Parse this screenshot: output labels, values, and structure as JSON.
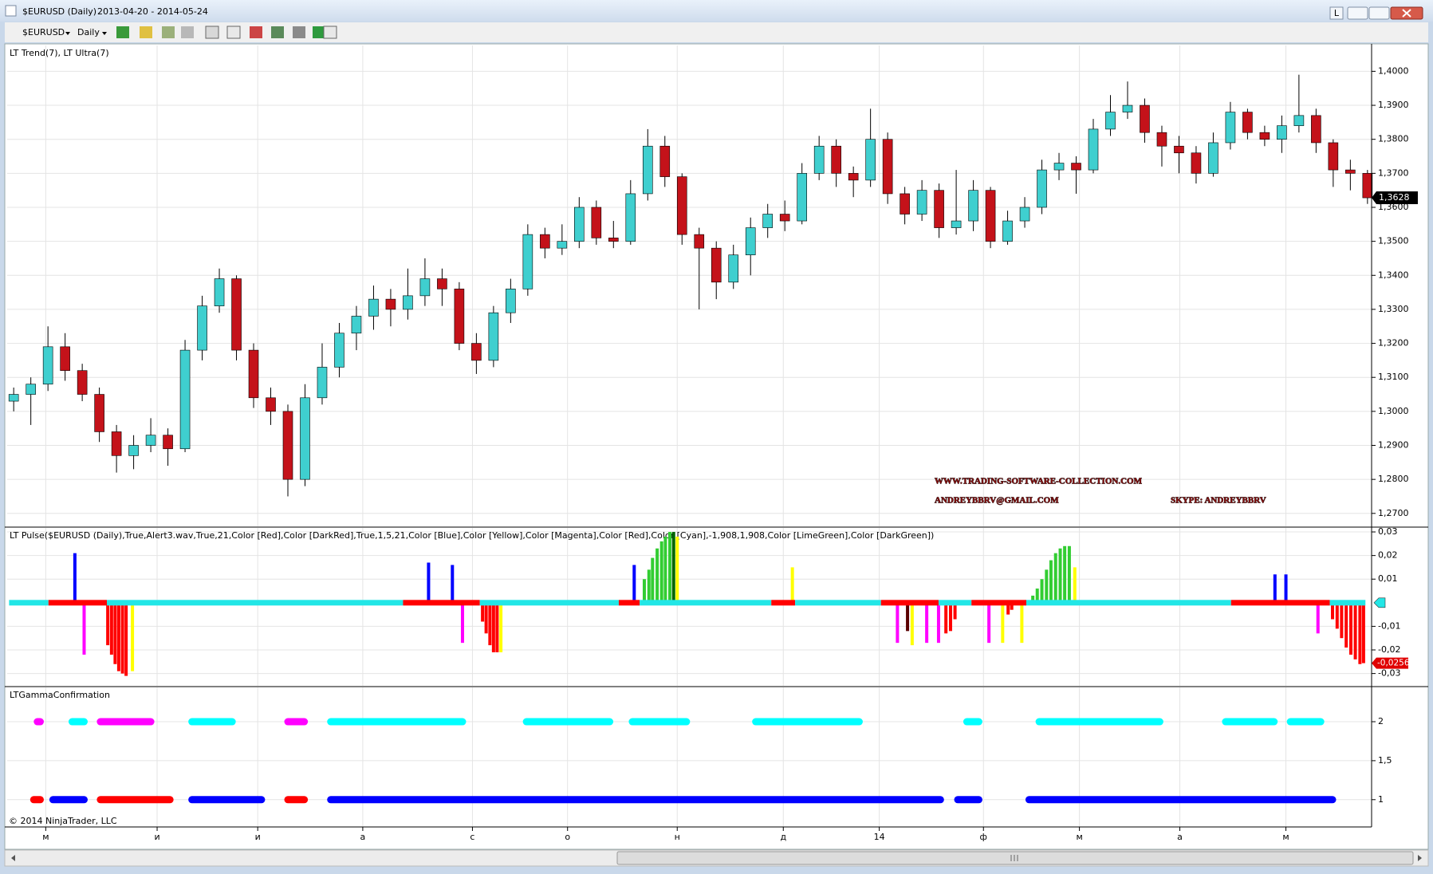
{
  "window": {
    "title": "$EURUSD (Daily)",
    "range": "2013-04-20 - 2014-05-24",
    "pin": "L"
  },
  "toolbar": {
    "symbol": "$EURUSD",
    "interval": "Daily"
  },
  "watermark": {
    "site": "WWW.TRADING-SOFTWARE-COLLECTION.COM",
    "email": "ANDREYBBRV@GMAIL.COM",
    "skype": "SKYPE: ANDREYBBRV"
  },
  "copyright": "© 2014 NinjaTrader, LLC",
  "chart_data": [
    {
      "type": "candlestick",
      "title": "LT Trend(7), LT Ultra(7)",
      "up_color": "#3fcfcf",
      "down_color": "#c4121a",
      "grid": true,
      "xlim": [
        -0.38,
        79.24
      ],
      "xticks": [
        {
          "value": 1.87,
          "label": "м"
        },
        {
          "value": 8.37,
          "label": "и"
        },
        {
          "value": 14.24,
          "label": "и"
        },
        {
          "value": 20.37,
          "label": "а"
        },
        {
          "value": 26.77,
          "label": "с"
        },
        {
          "value": 32.32,
          "label": "о"
        },
        {
          "value": 38.72,
          "label": "н"
        },
        {
          "value": 44.91,
          "label": "д"
        },
        {
          "value": 50.51,
          "label": "14"
        },
        {
          "value": 56.59,
          "label": "ф"
        },
        {
          "value": 62.19,
          "label": "м"
        },
        {
          "value": 68.05,
          "label": "а"
        },
        {
          "value": 74.24,
          "label": "м"
        }
      ],
      "ylim": [
        1.2662,
        1.4076
      ],
      "yticks": [
        {
          "value": 1.4,
          "label": "1,4000"
        },
        {
          "value": 1.39,
          "label": "1,3900"
        },
        {
          "value": 1.38,
          "label": "1,3800"
        },
        {
          "value": 1.37,
          "label": "1,3700"
        },
        {
          "value": 1.36,
          "label": "1,3600"
        },
        {
          "value": 1.35,
          "label": "1,3500"
        },
        {
          "value": 1.34,
          "label": "1,3400"
        },
        {
          "value": 1.33,
          "label": "1,3300"
        },
        {
          "value": 1.32,
          "label": "1,3200"
        },
        {
          "value": 1.31,
          "label": "1,3100"
        },
        {
          "value": 1.3,
          "label": "1,3000"
        },
        {
          "value": 1.29,
          "label": "1,2900"
        },
        {
          "value": 1.28,
          "label": "1,2800"
        },
        {
          "value": 1.27,
          "label": "1,2700"
        }
      ],
      "last_price": {
        "value": 1.3628,
        "label": "1,3628"
      },
      "ohlc": [
        [
          1.303,
          1.307,
          1.3,
          1.305
        ],
        [
          1.305,
          1.31,
          1.296,
          1.308
        ],
        [
          1.308,
          1.325,
          1.306,
          1.319
        ],
        [
          1.319,
          1.323,
          1.309,
          1.312
        ],
        [
          1.312,
          1.314,
          1.303,
          1.305
        ],
        [
          1.305,
          1.307,
          1.291,
          1.294
        ],
        [
          1.294,
          1.296,
          1.282,
          1.287
        ],
        [
          1.287,
          1.293,
          1.283,
          1.29
        ],
        [
          1.29,
          1.298,
          1.288,
          1.293
        ],
        [
          1.293,
          1.295,
          1.284,
          1.289
        ],
        [
          1.289,
          1.321,
          1.288,
          1.318
        ],
        [
          1.318,
          1.334,
          1.315,
          1.331
        ],
        [
          1.331,
          1.342,
          1.329,
          1.339
        ],
        [
          1.339,
          1.34,
          1.315,
          1.318
        ],
        [
          1.318,
          1.32,
          1.301,
          1.304
        ],
        [
          1.304,
          1.307,
          1.296,
          1.3
        ],
        [
          1.3,
          1.302,
          1.275,
          1.28
        ],
        [
          1.28,
          1.308,
          1.278,
          1.304
        ],
        [
          1.304,
          1.32,
          1.302,
          1.313
        ],
        [
          1.313,
          1.326,
          1.31,
          1.323
        ],
        [
          1.323,
          1.331,
          1.318,
          1.328
        ],
        [
          1.328,
          1.337,
          1.324,
          1.333
        ],
        [
          1.333,
          1.336,
          1.325,
          1.33
        ],
        [
          1.33,
          1.342,
          1.327,
          1.334
        ],
        [
          1.334,
          1.345,
          1.331,
          1.339
        ],
        [
          1.339,
          1.342,
          1.331,
          1.336
        ],
        [
          1.336,
          1.338,
          1.318,
          1.32
        ],
        [
          1.32,
          1.323,
          1.311,
          1.315
        ],
        [
          1.315,
          1.331,
          1.313,
          1.329
        ],
        [
          1.329,
          1.339,
          1.326,
          1.336
        ],
        [
          1.336,
          1.355,
          1.334,
          1.352
        ],
        [
          1.352,
          1.354,
          1.345,
          1.348
        ],
        [
          1.348,
          1.355,
          1.346,
          1.35
        ],
        [
          1.35,
          1.363,
          1.348,
          1.36
        ],
        [
          1.36,
          1.362,
          1.349,
          1.351
        ],
        [
          1.351,
          1.356,
          1.348,
          1.35
        ],
        [
          1.35,
          1.368,
          1.349,
          1.364
        ],
        [
          1.364,
          1.383,
          1.362,
          1.378
        ],
        [
          1.378,
          1.381,
          1.366,
          1.369
        ],
        [
          1.369,
          1.37,
          1.349,
          1.352
        ],
        [
          1.352,
          1.354,
          1.33,
          1.348
        ],
        [
          1.348,
          1.35,
          1.333,
          1.338
        ],
        [
          1.338,
          1.349,
          1.336,
          1.346
        ],
        [
          1.346,
          1.357,
          1.34,
          1.354
        ],
        [
          1.354,
          1.361,
          1.351,
          1.358
        ],
        [
          1.358,
          1.362,
          1.353,
          1.356
        ],
        [
          1.356,
          1.373,
          1.355,
          1.37
        ],
        [
          1.37,
          1.381,
          1.368,
          1.378
        ],
        [
          1.378,
          1.38,
          1.366,
          1.37
        ],
        [
          1.37,
          1.372,
          1.363,
          1.368
        ],
        [
          1.368,
          1.389,
          1.366,
          1.38
        ],
        [
          1.38,
          1.382,
          1.361,
          1.364
        ],
        [
          1.364,
          1.366,
          1.355,
          1.358
        ],
        [
          1.358,
          1.368,
          1.356,
          1.365
        ],
        [
          1.365,
          1.367,
          1.351,
          1.354
        ],
        [
          1.354,
          1.371,
          1.352,
          1.356
        ],
        [
          1.356,
          1.368,
          1.353,
          1.365
        ],
        [
          1.365,
          1.366,
          1.348,
          1.35
        ],
        [
          1.35,
          1.359,
          1.349,
          1.356
        ],
        [
          1.356,
          1.363,
          1.354,
          1.36
        ],
        [
          1.36,
          1.374,
          1.358,
          1.371
        ],
        [
          1.371,
          1.376,
          1.368,
          1.373
        ],
        [
          1.373,
          1.375,
          1.364,
          1.371
        ],
        [
          1.371,
          1.386,
          1.37,
          1.383
        ],
        [
          1.383,
          1.393,
          1.381,
          1.388
        ],
        [
          1.388,
          1.397,
          1.386,
          1.39
        ],
        [
          1.39,
          1.392,
          1.379,
          1.382
        ],
        [
          1.382,
          1.384,
          1.372,
          1.378
        ],
        [
          1.378,
          1.381,
          1.37,
          1.376
        ],
        [
          1.376,
          1.378,
          1.367,
          1.37
        ],
        [
          1.37,
          1.382,
          1.369,
          1.379
        ],
        [
          1.379,
          1.391,
          1.377,
          1.388
        ],
        [
          1.388,
          1.389,
          1.38,
          1.382
        ],
        [
          1.382,
          1.384,
          1.378,
          1.38
        ],
        [
          1.38,
          1.387,
          1.376,
          1.384
        ],
        [
          1.384,
          1.399,
          1.382,
          1.387
        ],
        [
          1.387,
          1.389,
          1.376,
          1.379
        ],
        [
          1.379,
          1.38,
          1.366,
          1.371
        ],
        [
          1.371,
          1.374,
          1.365,
          1.37
        ],
        [
          1.37,
          1.371,
          1.361,
          1.3628
        ]
      ]
    },
    {
      "type": "bar",
      "title": "LT Pulse($EURUSD (Daily),True,Alert3.wav,True,21,Color [Red],Color [DarkRed],True,1,5,21,Color [Blue],Color [Yellow],Color [Magenta],Color [Red],Color [Cyan],-1,908,1,908,Color [LimeGreen],Color [DarkGreen])",
      "ylim": [
        -0.0352,
        0.0317
      ],
      "yticks": [
        {
          "value": 0.03,
          "label": "0,03"
        },
        {
          "value": 0.02,
          "label": "0,02"
        },
        {
          "value": 0.01,
          "label": "0,01"
        },
        {
          "value": -0.01,
          "label": "-0,01"
        },
        {
          "value": -0.02,
          "label": "-0,02"
        },
        {
          "value": -0.03,
          "label": "-0,03"
        }
      ],
      "last_value": {
        "value": -0.0256,
        "label": "-0,0256"
      },
      "baseline": [
        {
          "from": -0.27,
          "to": 2.03,
          "color": "#22e6e6"
        },
        {
          "from": 2.03,
          "to": 5.44,
          "color": "#ff0000"
        },
        {
          "from": 5.44,
          "to": 22.72,
          "color": "#22e6e6"
        },
        {
          "from": 22.72,
          "to": 27.2,
          "color": "#ff0000"
        },
        {
          "from": 27.2,
          "to": 35.31,
          "color": "#22e6e6"
        },
        {
          "from": 35.31,
          "to": 36.53,
          "color": "#ff0000"
        },
        {
          "from": 36.53,
          "to": 44.21,
          "color": "#22e6e6"
        },
        {
          "from": 44.21,
          "to": 45.6,
          "color": "#ff0000"
        },
        {
          "from": 45.6,
          "to": 50.61,
          "color": "#22e6e6"
        },
        {
          "from": 50.61,
          "to": 53.97,
          "color": "#ff0000"
        },
        {
          "from": 53.97,
          "to": 55.89,
          "color": "#22e6e6"
        },
        {
          "from": 55.89,
          "to": 59.09,
          "color": "#ff0000"
        },
        {
          "from": 59.09,
          "to": 71.04,
          "color": "#22e6e6"
        },
        {
          "from": 71.04,
          "to": 76.8,
          "color": "#ff0000"
        },
        {
          "from": 76.8,
          "to": 78.88,
          "color": "#22e6e6"
        }
      ],
      "bars": [
        {
          "color": "#ff0000",
          "x": [
            5.49,
            5.71,
            5.92,
            6.13,
            6.35,
            6.56,
            27.36,
            27.57,
            27.79,
            28.0,
            28.21,
            54.4,
            54.67,
            54.93,
            58.03,
            58.24,
            76.96,
            77.23,
            77.49,
            77.76,
            78.03,
            78.29,
            78.56,
            78.77
          ],
          "values": [
            -0.018,
            -0.022,
            -0.026,
            -0.029,
            -0.03,
            -0.031,
            -0.008,
            -0.013,
            -0.018,
            -0.021,
            -0.021,
            -0.013,
            -0.012,
            -0.007,
            -0.005,
            -0.003,
            -0.007,
            -0.011,
            -0.015,
            -0.019,
            -0.022,
            -0.024,
            -0.026,
            -0.0256
          ]
        },
        {
          "color": "#5a0000",
          "x": [
            52.16
          ],
          "values": [
            -0.012
          ]
        },
        {
          "color": "#32cd32",
          "x": [
            36.8,
            37.07,
            37.28,
            37.55,
            37.81,
            38.03,
            38.29,
            59.47,
            59.73,
            60.0,
            60.27,
            60.53,
            60.8,
            61.07,
            61.33,
            61.6
          ],
          "values": [
            0.01,
            0.014,
            0.019,
            0.023,
            0.026,
            0.028,
            0.03,
            0.003,
            0.006,
            0.01,
            0.014,
            0.018,
            0.021,
            0.023,
            0.024,
            0.024
          ]
        },
        {
          "color": "#006400",
          "x": [
            38.51
          ],
          "values": [
            0.03
          ]
        },
        {
          "color": "#0000ff",
          "x": [
            3.57,
            24.21,
            25.6,
            36.21,
            73.6,
            74.24
          ],
          "values": [
            0.021,
            0.017,
            0.016,
            0.016,
            0.012,
            0.012
          ]
        },
        {
          "color": "#ff00ff",
          "x": [
            4.11,
            26.19,
            51.57,
            53.28,
            53.97,
            56.91,
            76.11
          ],
          "values": [
            -0.022,
            -0.017,
            -0.017,
            -0.017,
            -0.017,
            -0.017,
            -0.013
          ]
        },
        {
          "color": "#ffff00",
          "x": [
            6.93,
            28.43,
            38.72,
            45.44,
            52.43,
            57.71,
            58.83,
            61.92
          ],
          "values": [
            -0.029,
            -0.021,
            0.028,
            0.015,
            -0.018,
            -0.017,
            -0.017,
            0.015
          ]
        }
      ]
    },
    {
      "type": "segments",
      "title": "LTGammaConfirmation",
      "ylim": [
        0.65,
        2.44
      ],
      "yticks": [
        2,
        {
          "value": 1.5,
          "label": "1,5"
        },
        1
      ],
      "rows": [
        {
          "y": 2,
          "pieces": [
            {
              "from": 1.17,
              "to": 1.76,
              "color": "#ff00ff"
            },
            {
              "from": 3.2,
              "to": 4.32,
              "color": "#00ffff"
            },
            {
              "from": 4.85,
              "to": 8.21,
              "color": "#ff00ff"
            },
            {
              "from": 10.19,
              "to": 12.96,
              "color": "#00ffff"
            },
            {
              "from": 15.79,
              "to": 17.17,
              "color": "#ff00ff"
            },
            {
              "from": 18.29,
              "to": 26.4,
              "color": "#00ffff"
            },
            {
              "from": 29.71,
              "to": 34.99,
              "color": "#00ffff"
            },
            {
              "from": 35.89,
              "to": 39.47,
              "color": "#00ffff"
            },
            {
              "from": 43.09,
              "to": 49.55,
              "color": "#00ffff"
            },
            {
              "from": 55.41,
              "to": 56.53,
              "color": "#00ffff"
            },
            {
              "from": 59.63,
              "to": 67.09,
              "color": "#00ffff"
            },
            {
              "from": 70.51,
              "to": 73.76,
              "color": "#00ffff"
            },
            {
              "from": 74.29,
              "to": 76.48,
              "color": "#00ffff"
            }
          ]
        },
        {
          "y": 1,
          "pieces": [
            {
              "from": 0.96,
              "to": 1.76,
              "color": "#ff0000"
            },
            {
              "from": 2.08,
              "to": 4.32,
              "color": "#0000ff"
            },
            {
              "from": 4.85,
              "to": 9.33,
              "color": "#ff0000"
            },
            {
              "from": 10.19,
              "to": 14.67,
              "color": "#0000ff"
            },
            {
              "from": 15.79,
              "to": 17.17,
              "color": "#ff0000"
            },
            {
              "from": 18.29,
              "to": 54.29,
              "color": "#0000ff"
            },
            {
              "from": 54.88,
              "to": 56.53,
              "color": "#0000ff"
            },
            {
              "from": 59.04,
              "to": 77.17,
              "color": "#0000ff"
            }
          ]
        }
      ]
    }
  ]
}
